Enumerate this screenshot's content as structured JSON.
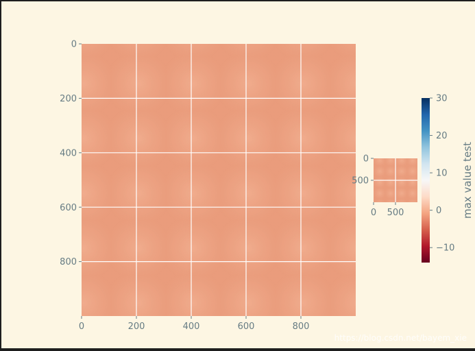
{
  "chart_data": [
    {
      "type": "heatmap",
      "xlim": [
        0,
        1000
      ],
      "ylim": [
        0,
        1000
      ],
      "x_ticks": [
        0,
        200,
        400,
        600,
        800
      ],
      "y_ticks": [
        0,
        200,
        400,
        600,
        800
      ],
      "grid": true,
      "cmap": "RdBu",
      "value_range": [
        -14,
        30
      ],
      "approx_value": 0
    },
    {
      "type": "heatmap",
      "xlim": [
        0,
        1000
      ],
      "ylim": [
        0,
        1000
      ],
      "x_ticks": [
        0,
        500
      ],
      "y_ticks": [
        0,
        500
      ],
      "grid": true,
      "cmap": "RdBu"
    },
    {
      "type": "colorbar",
      "label": "max value test",
      "ticks": [
        30,
        20,
        10,
        0,
        -10
      ],
      "range": [
        -14,
        30
      ],
      "colors": [
        "#67001f",
        "#b2182b",
        "#d6604d",
        "#f4a582",
        "#fddbc7",
        "#f7f7f7",
        "#d1e5f0",
        "#92c5de",
        "#4393c3",
        "#2166ac",
        "#053061"
      ]
    }
  ],
  "colors": {
    "background": "#fdf6e3",
    "text": "#657b83",
    "heatmap_base": "#eda384",
    "grid": "#ffffff"
  },
  "watermark": "https://blog.csdn.net/bayem_xie"
}
